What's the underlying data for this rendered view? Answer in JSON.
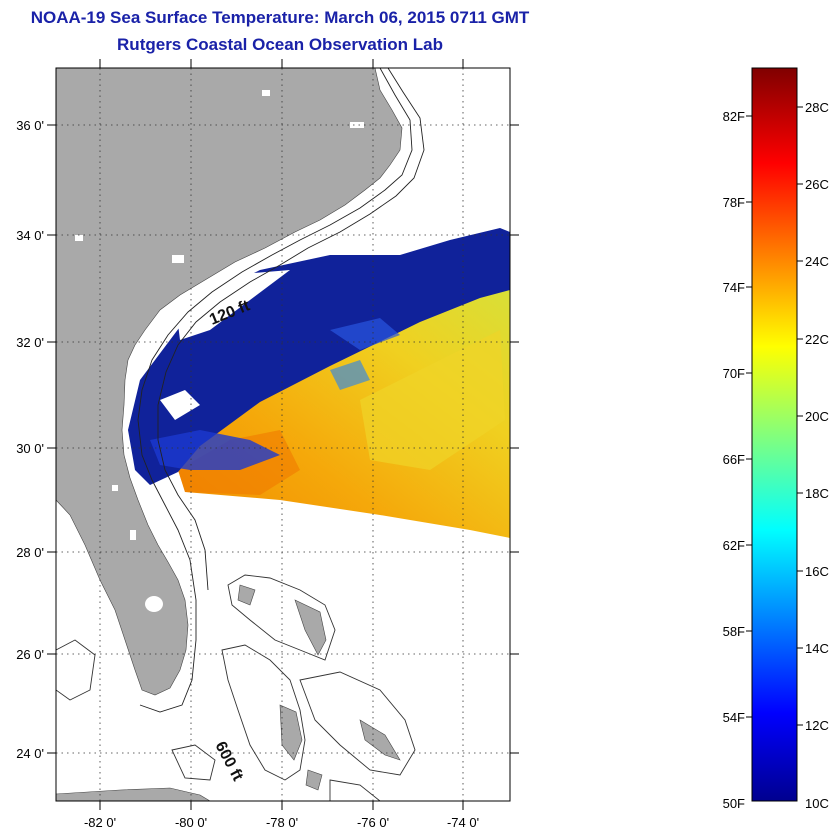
{
  "header": {
    "title": "NOAA-19 Sea Surface Temperature:  March 06, 2015 0711 GMT",
    "subtitle": "Rutgers Coastal Ocean Observation Lab"
  },
  "map": {
    "lat_labels": [
      "36 0'",
      "34 0'",
      "32 0'",
      "30 0'",
      "28 0'",
      "26 0'",
      "24 0'"
    ],
    "lon_labels": [
      "-82 0'",
      "-80 0'",
      "-78 0'",
      "-76 0'",
      "-74 0'"
    ],
    "isobath_labels": [
      "120 ft",
      "600 ft"
    ],
    "colors": {
      "land": "#a9a9a9",
      "title": "#1a22a8"
    }
  },
  "colorbar": {
    "fahrenheit_labels": [
      "82F",
      "78F",
      "74F",
      "70F",
      "66F",
      "62F",
      "58F",
      "54F",
      "50F"
    ],
    "celsius_labels": [
      "28C",
      "26C",
      "24C",
      "22C",
      "20C",
      "18C",
      "16C",
      "14C",
      "12C",
      "10C"
    ]
  }
}
